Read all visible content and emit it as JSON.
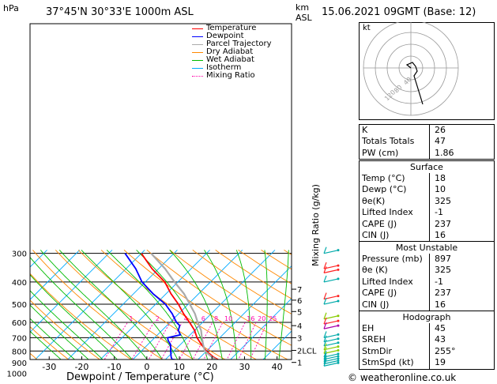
{
  "header": {
    "hpa_label": "hPa",
    "location": "37°45'N  30°33'E  1000m  ASL",
    "km_label": "km",
    "asl_label": "ASL",
    "datetime": "15.06.2021  09GMT  (Base: 12)"
  },
  "footer": {
    "copyright": "© weatheronline.co.uk"
  },
  "legend": [
    {
      "label": "Temperature",
      "color": "#ff0000",
      "dash": "none"
    },
    {
      "label": "Dewpoint",
      "color": "#0000ff",
      "dash": "none"
    },
    {
      "label": "Parcel Trajectory",
      "color": "#aaaaaa",
      "dash": "none"
    },
    {
      "label": "Dry Adiabat",
      "color": "#ff8800",
      "dash": "none"
    },
    {
      "label": "Wet Adiabat",
      "color": "#00bb00",
      "dash": "none"
    },
    {
      "label": "Isotherm",
      "color": "#00aaff",
      "dash": "none"
    },
    {
      "label": "Mixing Ratio",
      "color": "#ff00aa",
      "dash": "2,2"
    }
  ],
  "chart_data": {
    "type": "line",
    "title": "37°45'N  30°33'E  1000m  ASL",
    "xlabel": "Dewpoint / Temperature (°C)",
    "ylabel": "hPa",
    "xlim": [
      -35,
      40
    ],
    "x_ticks": [
      -30,
      -20,
      -10,
      0,
      10,
      20,
      30,
      40
    ],
    "pressure_levels": [
      300,
      400,
      500,
      600,
      700,
      800,
      900,
      1000
    ],
    "height_ticks": [
      {
        "label": "7",
        "p": 430
      },
      {
        "label": "6",
        "p": 480
      },
      {
        "label": "5",
        "p": 538
      },
      {
        "label": "4",
        "p": 620
      },
      {
        "label": "3",
        "p": 700
      },
      {
        "label": "2LCL",
        "p": 795
      },
      {
        "label": "1",
        "p": 897
      }
    ],
    "right_axis_label": "Mixing Ratio (g/kg)",
    "mixing_ratio_labels": [
      "1",
      "2",
      "3",
      "4",
      "6",
      "8",
      "10",
      "16",
      "20",
      "25"
    ],
    "mixing_ratio_values": [
      1,
      2,
      3,
      4,
      6,
      8,
      10,
      16,
      20,
      25
    ],
    "isotherm_step": 10,
    "series": [
      {
        "name": "Temperature",
        "color": "#ff0000",
        "points": [
          [
            897,
            18
          ],
          [
            880,
            17
          ],
          [
            850,
            14
          ],
          [
            800,
            10
          ],
          [
            750,
            6.5
          ],
          [
            700,
            3
          ],
          [
            650,
            0
          ],
          [
            600,
            -4
          ],
          [
            550,
            -8.5
          ],
          [
            500,
            -13
          ],
          [
            450,
            -18.5
          ],
          [
            400,
            -24
          ],
          [
            350,
            -32
          ],
          [
            300,
            -40
          ]
        ]
      },
      {
        "name": "Dewpoint",
        "color": "#0000ff",
        "points": [
          [
            897,
            10
          ],
          [
            885,
            7
          ],
          [
            870,
            2
          ],
          [
            850,
            1
          ],
          [
            800,
            -1
          ],
          [
            750,
            -3
          ],
          [
            720,
            -5
          ],
          [
            700,
            -6
          ],
          [
            680,
            -3
          ],
          [
            650,
            -5
          ],
          [
            620,
            -6
          ],
          [
            600,
            -8
          ],
          [
            550,
            -12
          ],
          [
            500,
            -17
          ],
          [
            450,
            -24
          ],
          [
            400,
            -31
          ],
          [
            350,
            -37
          ],
          [
            300,
            -45
          ]
        ]
      },
      {
        "name": "Parcel Trajectory",
        "color": "#aaaaaa",
        "points": [
          [
            897,
            18
          ],
          [
            850,
            13.5
          ],
          [
            800,
            9.5
          ],
          [
            750,
            7
          ],
          [
            700,
            4.5
          ],
          [
            650,
            2
          ],
          [
            600,
            -1.5
          ],
          [
            550,
            -5
          ],
          [
            500,
            -9.5
          ],
          [
            450,
            -14.5
          ],
          [
            400,
            -21
          ],
          [
            350,
            -28
          ],
          [
            300,
            -37
          ]
        ]
      }
    ],
    "wind_barbs": [
      {
        "p": 300,
        "color": "#00aaaa"
      },
      {
        "p": 350,
        "color": "#ff2222"
      },
      {
        "p": 365,
        "color": "#ff2222"
      },
      {
        "p": 400,
        "color": "#00aaaa"
      },
      {
        "p": 475,
        "color": "#ff2222"
      },
      {
        "p": 500,
        "color": "#00aaaa"
      },
      {
        "p": 580,
        "color": "#88cc00"
      },
      {
        "p": 610,
        "color": "#ff2222"
      },
      {
        "p": 640,
        "color": "#aa00aa"
      },
      {
        "p": 700,
        "color": "#00aaaa"
      },
      {
        "p": 730,
        "color": "#00aaaa"
      },
      {
        "p": 760,
        "color": "#00aaaa"
      },
      {
        "p": 790,
        "color": "#88cc00"
      },
      {
        "p": 820,
        "color": "#88cc00"
      },
      {
        "p": 850,
        "color": "#00aaaa"
      },
      {
        "p": 870,
        "color": "#00aaaa"
      },
      {
        "p": 890,
        "color": "#00aaaa"
      },
      {
        "p": 910,
        "color": "#00aaaa"
      },
      {
        "p": 930,
        "color": "#00aaaa"
      }
    ]
  },
  "hodograph": {
    "unit_label": "kt",
    "ring_labels": [
      "120",
      "80",
      "40"
    ],
    "trace_color": "#000000"
  },
  "indices": {
    "top": [
      {
        "label": "K",
        "value": "26"
      },
      {
        "label": "Totals Totals",
        "value": "47"
      },
      {
        "label": "PW (cm)",
        "value": "1.86"
      }
    ],
    "surface": {
      "title": "Surface",
      "rows": [
        {
          "label": "Temp (°C)",
          "value": "18"
        },
        {
          "label": "Dewp (°C)",
          "value": "10"
        },
        {
          "label": "θe(K)",
          "value": "325"
        },
        {
          "label": "Lifted Index",
          "value": "-1"
        },
        {
          "label": "CAPE (J)",
          "value": "237"
        },
        {
          "label": "CIN (J)",
          "value": "16"
        }
      ]
    },
    "unstable": {
      "title": "Most Unstable",
      "rows": [
        {
          "label": "Pressure (mb)",
          "value": "897"
        },
        {
          "label": "θe (K)",
          "value": "325"
        },
        {
          "label": "Lifted Index",
          "value": "-1"
        },
        {
          "label": "CAPE (J)",
          "value": "237"
        },
        {
          "label": "CIN (J)",
          "value": "16"
        }
      ]
    },
    "hodograph": {
      "title": "Hodograph",
      "rows": [
        {
          "label": "EH",
          "value": "45"
        },
        {
          "label": "SREH",
          "value": "43"
        },
        {
          "label": "StmDir",
          "value": "255°"
        },
        {
          "label": "StmSpd (kt)",
          "value": "19"
        }
      ]
    }
  }
}
